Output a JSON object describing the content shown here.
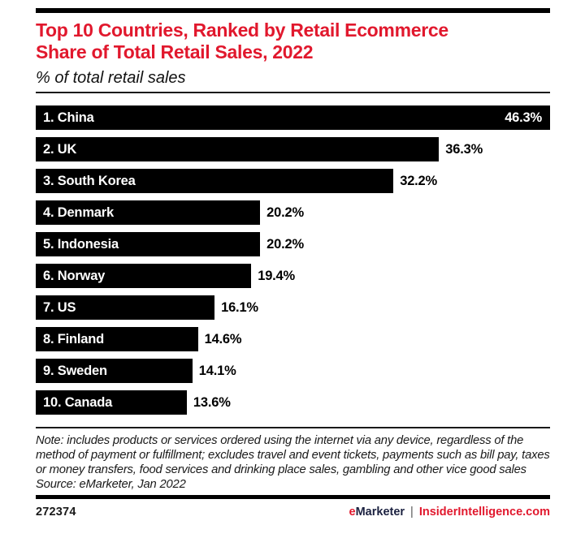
{
  "header": {
    "title_line1": "Top 10 Countries, Ranked by Retail Ecommerce",
    "title_line2": "Share of Total Retail Sales, 2022",
    "subtitle": "% of total retail sales"
  },
  "chart_data": {
    "type": "bar",
    "orientation": "horizontal",
    "title": "Top 10 Countries, Ranked by Retail Ecommerce Share of Total Retail Sales, 2022",
    "subtitle": "% of total retail sales",
    "unit": "%",
    "xlim": [
      0,
      46.3
    ],
    "grid": false,
    "legend": "none",
    "value_labels": "end-of-bar",
    "categories": [
      "China",
      "UK",
      "South Korea",
      "Denmark",
      "Indonesia",
      "Norway",
      "US",
      "Finland",
      "Sweden",
      "Canada"
    ],
    "values": [
      46.3,
      36.3,
      32.2,
      20.2,
      20.2,
      19.4,
      16.1,
      14.6,
      14.1,
      13.6
    ],
    "bars": [
      {
        "label": "1. China",
        "value": 46.3,
        "display_value": "46.3%"
      },
      {
        "label": "2. UK",
        "value": 36.3,
        "display_value": "36.3%"
      },
      {
        "label": "3. South Korea",
        "value": 32.2,
        "display_value": "32.2%"
      },
      {
        "label": "4. Denmark",
        "value": 20.2,
        "display_value": "20.2%"
      },
      {
        "label": "5. Indonesia",
        "value": 20.2,
        "display_value": "20.2%"
      },
      {
        "label": "6. Norway",
        "value": 19.4,
        "display_value": "19.4%"
      },
      {
        "label": "7. US",
        "value": 16.1,
        "display_value": "16.1%"
      },
      {
        "label": "8. Finland",
        "value": 14.6,
        "display_value": "14.6%"
      },
      {
        "label": "9. Sweden",
        "value": 14.1,
        "display_value": "14.1%"
      },
      {
        "label": "10. Canada",
        "value": 13.6,
        "display_value": "13.6%"
      }
    ],
    "bar_color": "#000000",
    "bar_label_color": "#ffffff",
    "value_label_color_outside": "#000000",
    "value_label_color_inside": "#ffffff"
  },
  "footnote": {
    "note": "Note: includes products or services ordered using the internet via any device, regardless of the method of payment or fulfillment; excludes travel and event tickets, payments such as bill pay, taxes or money transfers, food services and drinking place sales, gambling and other vice good sales",
    "source": "Source: eMarketer, Jan 2022"
  },
  "footer": {
    "chart_id": "272374",
    "brand_accent": "e",
    "brand_rest": "Marketer",
    "separator": "|",
    "site": "InsiderIntelligence.com"
  },
  "colors": {
    "accent_red": "#e1182d",
    "bar_black": "#000000",
    "brand_navy": "#1b2140",
    "rule_dark": "#1a1a1a",
    "background": "#ffffff"
  }
}
